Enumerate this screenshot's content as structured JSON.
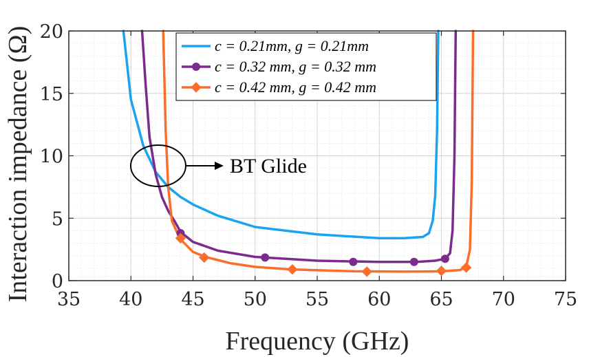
{
  "chart_data": {
    "type": "line",
    "xlabel": "Frequency (GHz)",
    "ylabel": "Interaction impedance (Ω)",
    "xlim": [
      35,
      75
    ],
    "ylim": [
      0,
      20
    ],
    "xticks": [
      "35",
      "40",
      "45",
      "50",
      "55",
      "60",
      "65",
      "70",
      "75"
    ],
    "yticks": [
      "0",
      "5",
      "10",
      "15",
      "20"
    ],
    "grid": true,
    "minor_grid": true,
    "legend_position": "top-right",
    "series": [
      {
        "name": "c = 0.21mm, g = 0.21mm",
        "color": "#1aa3ef",
        "marker": "none",
        "x": [
          39.4,
          40.0,
          41.0,
          42.0,
          43.0,
          44.0,
          45.0,
          47.0,
          50.0,
          55.0,
          60.0,
          62.0,
          63.5,
          64.0,
          64.3,
          64.5,
          64.65,
          64.75
        ],
        "y": [
          20,
          14.5,
          10.8,
          8.7,
          7.5,
          6.7,
          6.1,
          5.2,
          4.3,
          3.7,
          3.4,
          3.4,
          3.5,
          3.8,
          4.8,
          6.8,
          12,
          20
        ]
      },
      {
        "name": "c = 0.32 mm, g = 0.32 mm",
        "color": "#7b2b8e",
        "marker": "circle",
        "x": [
          40.9,
          41.2,
          41.5,
          42.0,
          42.5,
          43.0,
          43.5,
          44.0,
          45.0,
          47.0,
          50.0,
          55.0,
          60.0,
          63.0,
          64.5,
          65.3,
          65.7,
          65.9,
          66.05,
          66.15
        ],
        "y": [
          20,
          15.5,
          11.5,
          8.5,
          6.7,
          5.6,
          4.8,
          3.9,
          3.1,
          2.4,
          1.9,
          1.6,
          1.5,
          1.5,
          1.6,
          1.75,
          2.2,
          4,
          10,
          20
        ],
        "marker_x": [
          44.0,
          50.8,
          57.9,
          62.8,
          65.3
        ],
        "marker_y": [
          3.8,
          1.85,
          1.5,
          1.5,
          1.75
        ]
      },
      {
        "name": "c = 0.42 mm, g = 0.42 mm",
        "color": "#fb6e2a",
        "marker": "diamond",
        "x": [
          42.6,
          42.8,
          43.0,
          43.3,
          43.7,
          44.0,
          44.5,
          45.0,
          46.0,
          48.0,
          50.0,
          53.0,
          58.0,
          62.0,
          65.0,
          66.5,
          67.0,
          67.3,
          67.45,
          67.55
        ],
        "y": [
          20,
          12,
          7.5,
          4.8,
          3.9,
          3.3,
          2.8,
          2.3,
          1.9,
          1.4,
          1.1,
          0.9,
          0.75,
          0.72,
          0.75,
          0.85,
          1.1,
          2.5,
          8,
          20
        ],
        "marker_x": [
          44.0,
          45.9,
          53.0,
          59.0,
          65.0,
          67.0
        ],
        "marker_y": [
          3.4,
          1.85,
          0.9,
          0.72,
          0.78,
          1.05
        ]
      }
    ],
    "annotations": [
      {
        "text": "BT Glide",
        "x": 42.2,
        "y": 9.2
      }
    ]
  }
}
